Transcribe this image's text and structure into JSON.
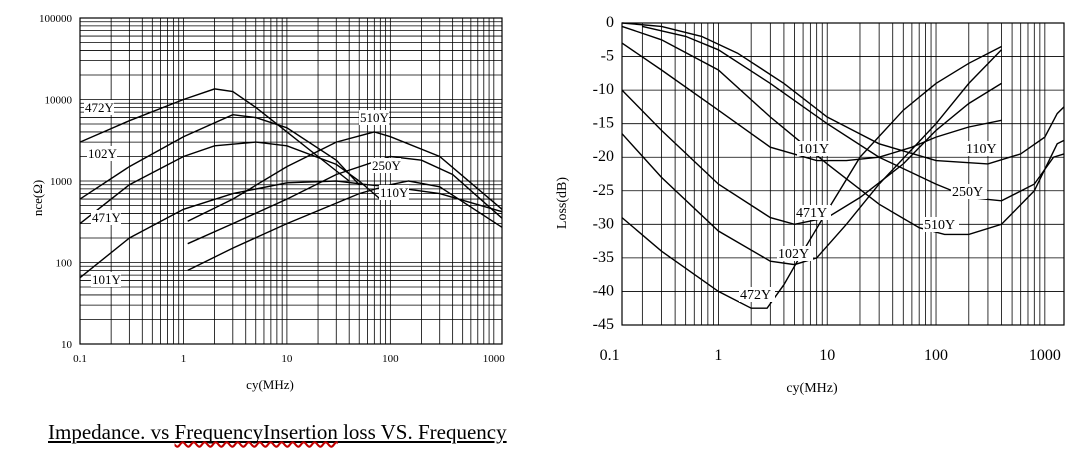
{
  "caption": {
    "part1": "Impedance. vs ",
    "part2": "FrequencyInsertion",
    "part3": " loss VS. Frequency"
  },
  "chart_data": [
    {
      "type": "line",
      "title": "",
      "xlabel": "cy(MHz)",
      "ylabel": "nce(Ω)",
      "xscale": "log",
      "yscale": "log",
      "xlim": [
        0.1,
        1200
      ],
      "ylim": [
        10,
        100000
      ],
      "x_ticks": [
        "0.1",
        "1",
        "10",
        "100",
        "1000"
      ],
      "y_ticks": [
        "10",
        "100",
        "1000",
        "10000",
        "100000"
      ],
      "grid": true,
      "series": [
        {
          "name": "472Y",
          "x": [
            0.1,
            0.3,
            1,
            2,
            3,
            5,
            10,
            20,
            40
          ],
          "y": [
            3000,
            5500,
            10000,
            13500,
            12500,
            8000,
            4000,
            2000,
            1000
          ]
        },
        {
          "name": "102Y",
          "x": [
            0.1,
            0.3,
            1,
            3,
            5,
            10,
            30,
            50
          ],
          "y": [
            600,
            1500,
            3500,
            6500,
            6000,
            4500,
            1800,
            900
          ]
        },
        {
          "name": "471Y",
          "x": [
            0.1,
            0.3,
            1,
            2,
            5,
            10,
            30,
            50,
            80
          ],
          "y": [
            300,
            900,
            2000,
            2700,
            3000,
            2700,
            1600,
            1000,
            600
          ]
        },
        {
          "name": "101Y",
          "x": [
            0.1,
            0.3,
            1,
            3,
            10,
            30,
            60,
            100,
            300,
            1200
          ],
          "y": [
            65,
            200,
            450,
            700,
            950,
            1000,
            900,
            850,
            700,
            420
          ]
        },
        {
          "name": "510Y",
          "x": [
            1.1,
            3,
            10,
            30,
            70,
            100,
            300,
            1200
          ],
          "y": [
            320,
            600,
            1500,
            3000,
            4000,
            3500,
            2000,
            450
          ]
        },
        {
          "name": "250Y",
          "x": [
            1.1,
            3,
            10,
            30,
            100,
            200,
            400,
            1200
          ],
          "y": [
            170,
            300,
            600,
            1200,
            2000,
            1800,
            1200,
            350
          ]
        },
        {
          "name": "110Y",
          "x": [
            1.1,
            3,
            10,
            50,
            100,
            150,
            300,
            1200
          ],
          "y": [
            80,
            150,
            300,
            700,
            900,
            1000,
            850,
            270
          ]
        }
      ],
      "annotations": [
        "472Y",
        "102Y",
        "471Y",
        "101Y",
        "510Y",
        "250Y",
        "110Y"
      ]
    },
    {
      "type": "line",
      "title": "",
      "xlabel": "cy(MHz)",
      "ylabel": "Loss(dB)",
      "xscale": "log",
      "xlim": [
        0.13,
        1500
      ],
      "ylim": [
        -45,
        0
      ],
      "x_ticks": [
        "0.1",
        "1",
        "10",
        "100",
        "1000"
      ],
      "y_ticks": [
        "0",
        "-5",
        "-10",
        "-15",
        "-20",
        "-25",
        "-30",
        "-35",
        "-40",
        "-45"
      ],
      "grid": true,
      "series": [
        {
          "name": "472Y",
          "x": [
            0.13,
            0.3,
            1,
            2,
            2.8,
            4,
            6,
            10,
            20,
            50,
            100,
            200,
            400
          ],
          "y": [
            -29,
            -34,
            -40,
            -42.5,
            -42.5,
            -39,
            -34,
            -28,
            -20,
            -13,
            -9,
            -6,
            -3.5
          ]
        },
        {
          "name": "102Y",
          "x": [
            0.13,
            0.3,
            1,
            3,
            5,
            8,
            15,
            30,
            100,
            200,
            400
          ],
          "y": [
            -16.5,
            -23,
            -31,
            -35.5,
            -36,
            -35,
            -30,
            -24,
            -15,
            -9,
            -4
          ]
        },
        {
          "name": "471Y",
          "x": [
            0.13,
            0.3,
            1,
            3,
            5,
            10,
            20,
            50,
            100,
            200,
            400
          ],
          "y": [
            -10,
            -16,
            -24,
            -29,
            -30,
            -29,
            -26,
            -21,
            -16,
            -12,
            -9
          ]
        },
        {
          "name": "101Y",
          "x": [
            0.13,
            0.3,
            1,
            3,
            8,
            15,
            30,
            60,
            100,
            200,
            400
          ],
          "y": [
            -3,
            -7,
            -13,
            -18.5,
            -20.5,
            -20.5,
            -20,
            -18.5,
            -17,
            -15.5,
            -14.5
          ]
        },
        {
          "name": "510Y",
          "x": [
            0.13,
            0.3,
            1,
            3,
            10,
            30,
            70,
            120,
            200,
            400,
            800,
            1300,
            1500
          ],
          "y": [
            -0.5,
            -2.5,
            -7,
            -14,
            -21,
            -27,
            -30.5,
            -31.5,
            -31.5,
            -30,
            -25,
            -18,
            -17.5
          ]
        },
        {
          "name": "250Y",
          "x": [
            0.2,
            0.5,
            1,
            3,
            10,
            30,
            100,
            200,
            400,
            800,
            1200,
            1500
          ],
          "y": [
            -0.5,
            -2,
            -4,
            -9,
            -15,
            -20,
            -24,
            -26,
            -26.5,
            -24,
            -20,
            -19.5
          ]
        },
        {
          "name": "110Y",
          "x": [
            0.13,
            0.3,
            0.7,
            1.5,
            4,
            10,
            30,
            100,
            300,
            600,
            1000,
            1300,
            1500
          ],
          "y": [
            0,
            -0.5,
            -2,
            -4.5,
            -9,
            -14,
            -18,
            -20.5,
            -21,
            -19.5,
            -17,
            -13.5,
            -12.5
          ]
        }
      ],
      "annotations": [
        "472Y",
        "102Y",
        "471Y",
        "101Y",
        "510Y",
        "250Y",
        "110Y"
      ]
    }
  ]
}
